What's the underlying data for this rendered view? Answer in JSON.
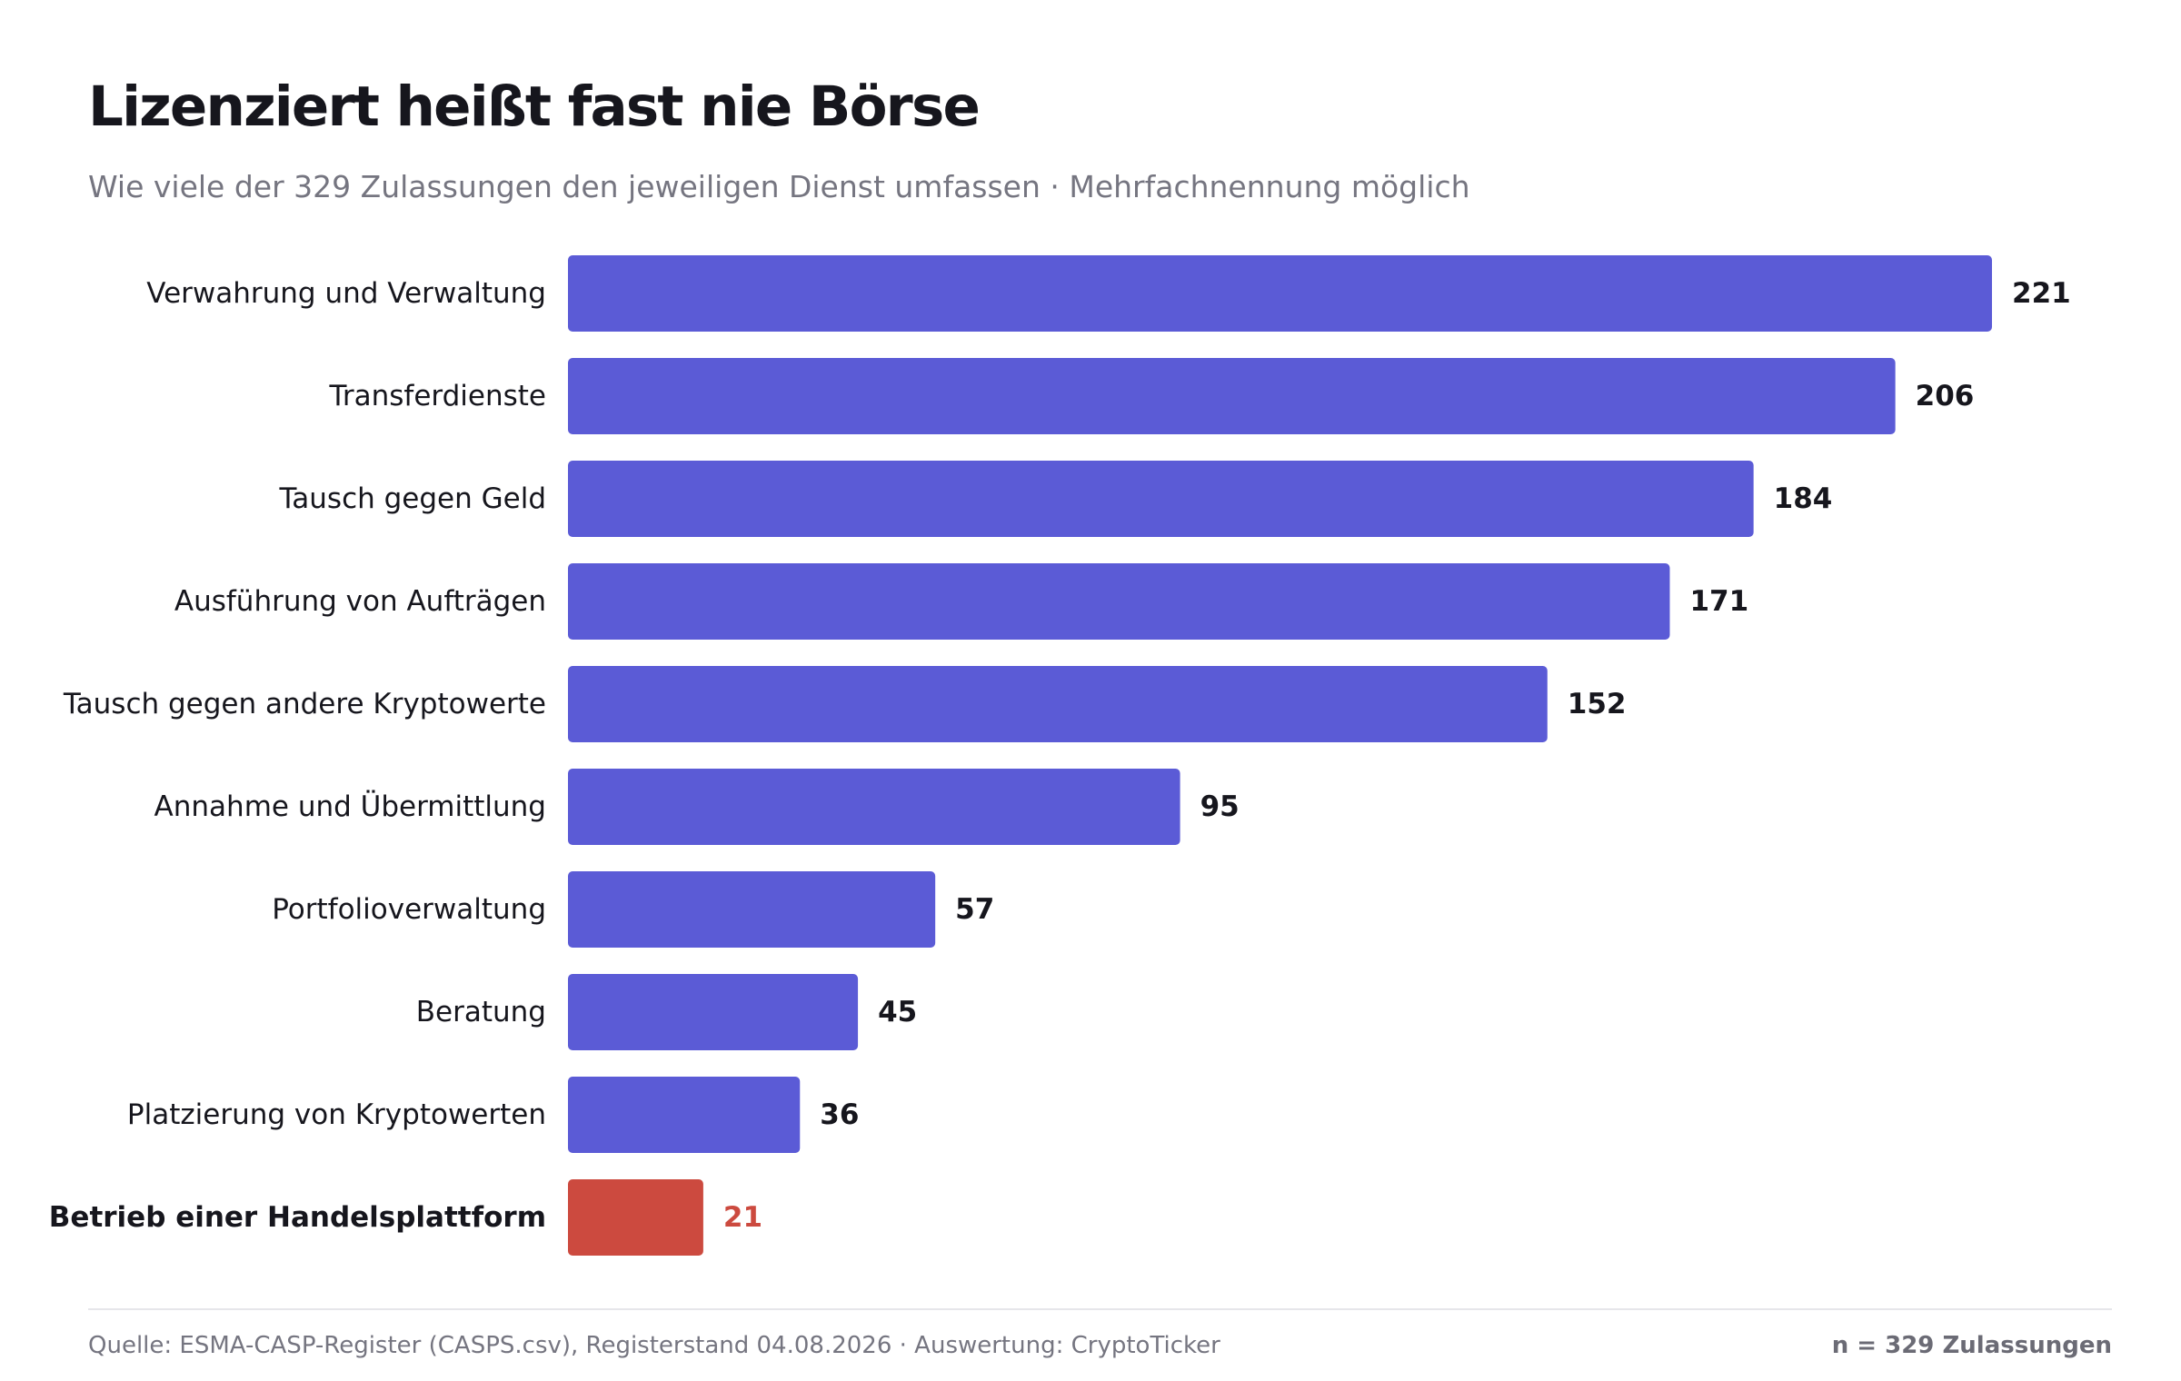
{
  "header": {
    "title": "Lizenziert heißt fast nie Börse",
    "subtitle": "Wie viele der 329 Zulassungen den jeweiligen Dienst umfassen · Mehrfachnennung möglich"
  },
  "footer": {
    "source": "Quelle: ESMA-CASP-Register (CASPS.csv), Registerstand 04.08.2026 · Auswertung: CryptoTicker",
    "sample": "n = 329 Zulassungen"
  },
  "colors": {
    "bar": "#5b5bd6",
    "highlight": "#cc4a3f",
    "text": "#16161d",
    "muted": "#757580"
  },
  "chart_data": {
    "type": "bar",
    "orientation": "horizontal",
    "title": "Lizenziert heißt fast nie Börse",
    "subtitle": "Wie viele der 329 Zulassungen den jeweiligen Dienst umfassen · Mehrfachnennung möglich",
    "categories": [
      "Verwahrung und Verwaltung",
      "Transferdienste",
      "Tausch gegen Geld",
      "Ausführung von Aufträgen",
      "Tausch gegen andere Kryptowerte",
      "Annahme und Übermittlung",
      "Portfolioverwaltung",
      "Beratung",
      "Platzierung von Kryptowerten",
      "Betrieb einer Handelsplattform"
    ],
    "values": [
      221,
      206,
      184,
      171,
      152,
      95,
      57,
      45,
      36,
      21
    ],
    "highlight": [
      false,
      false,
      false,
      false,
      false,
      false,
      false,
      false,
      false,
      true
    ],
    "xlim": [
      0,
      221
    ],
    "grid": false,
    "data_labels": true,
    "legend": "none"
  }
}
